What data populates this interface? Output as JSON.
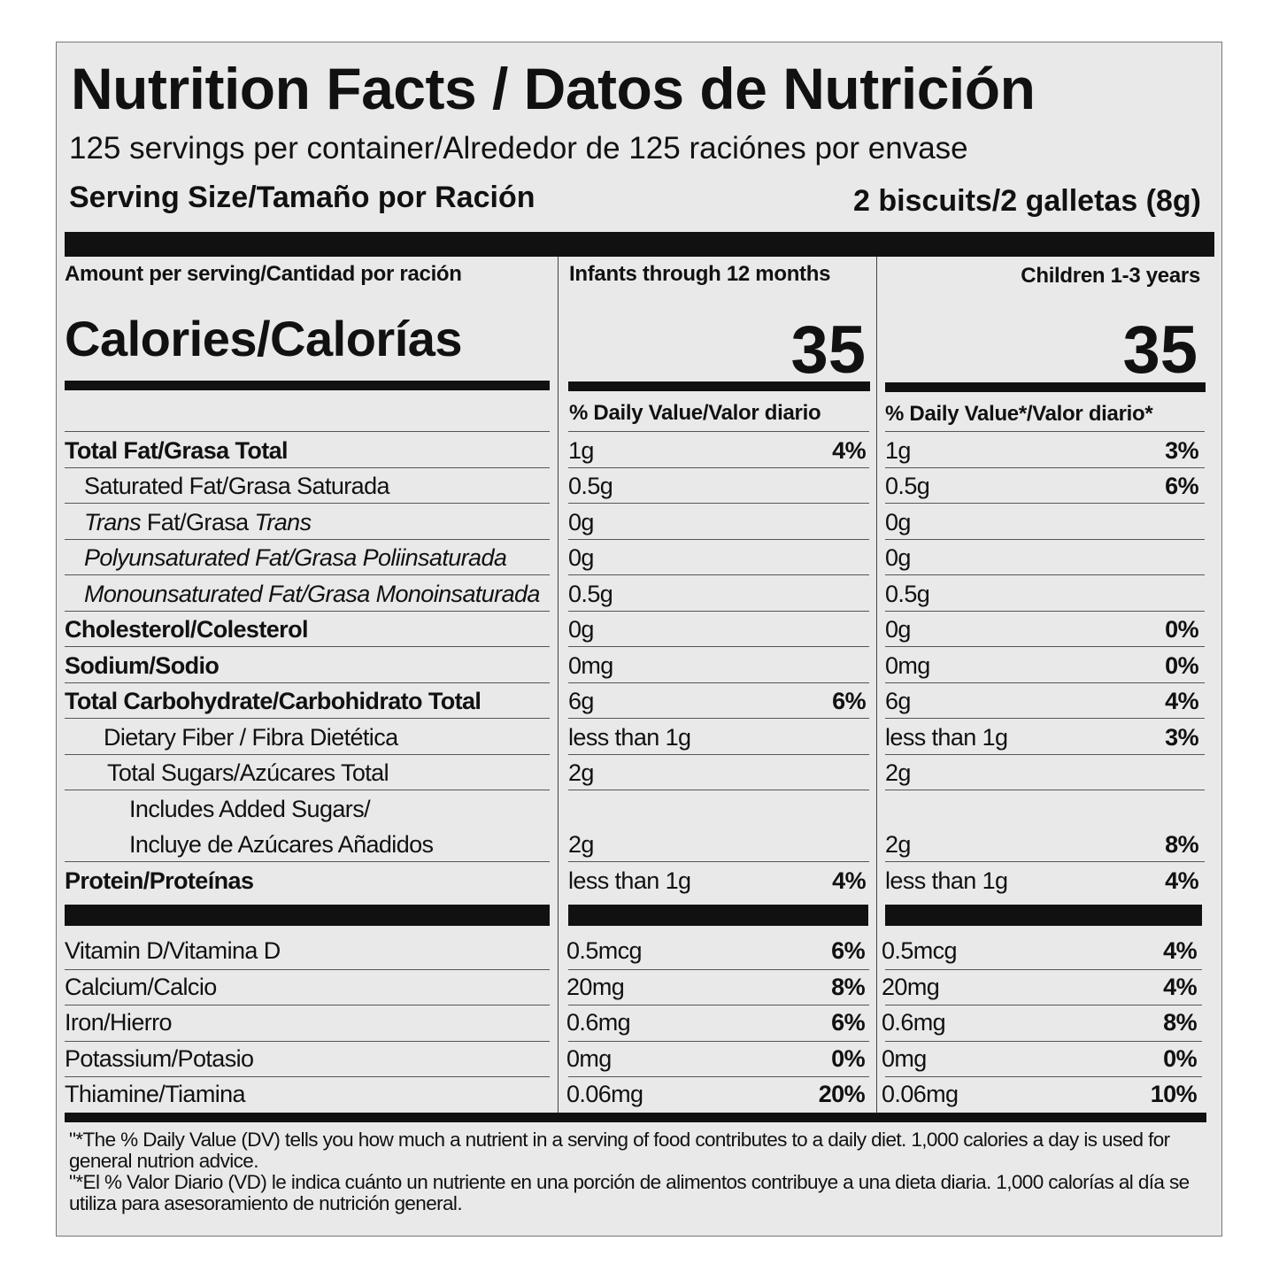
{
  "title": "Nutrition Facts / Datos de Nutrición",
  "servings": "125 servings per container/Alrededor de 125 raciónes por envase",
  "serving_size_label": "Serving Size/Tamaño por Ración",
  "serving_size_value": "2 biscuits/2 galletas (8g)",
  "amount_header": "Amount per serving/Cantidad por ración",
  "infant_header": "Infants through 12 months",
  "child_header": "Children 1-3 years",
  "calories_label": "Calories/Calorías",
  "infant_calories": "35",
  "child_calories": "35",
  "infant_dv_header": "% Daily Value/Valor diario",
  "child_dv_header": "% Daily Value*/Valor diario*",
  "rows": [
    {
      "parts": [
        {
          "t": "Total Fat/Grasa Total"
        }
      ],
      "style": "bold",
      "indent": 0,
      "iv": "1g",
      "ip": "4%",
      "cv": "1g",
      "cp": "3%"
    },
    {
      "parts": [
        {
          "t": "Saturated Fat/Grasa Saturada"
        }
      ],
      "style": "",
      "indent": 22,
      "iv": "0.5g",
      "ip": "",
      "cv": "0.5g",
      "cp": "6%"
    },
    {
      "parts": [
        {
          "t": "Trans",
          "i": true
        },
        {
          "t": " Fat/Grasa "
        },
        {
          "t": "Trans",
          "i": true
        }
      ],
      "style": "",
      "indent": 22,
      "iv": "0g",
      "ip": "",
      "cv": "0g",
      "cp": ""
    },
    {
      "parts": [
        {
          "t": "Polyunsaturated Fat/Grasa Poliinsaturada",
          "i": true
        }
      ],
      "style": "",
      "indent": 22,
      "iv": "0g",
      "ip": "",
      "cv": "0g",
      "cp": ""
    },
    {
      "parts": [
        {
          "t": "Monounsaturated Fat/Grasa Monoinsaturada",
          "i": true
        }
      ],
      "style": "",
      "indent": 22,
      "iv": "0.5g",
      "ip": "",
      "cv": "0.5g",
      "cp": ""
    },
    {
      "parts": [
        {
          "t": "Cholesterol/Colesterol"
        }
      ],
      "style": "bold",
      "indent": 0,
      "iv": "0g",
      "ip": "",
      "cv": "0g",
      "cp": "0%"
    },
    {
      "parts": [
        {
          "t": "Sodium/Sodio"
        }
      ],
      "style": "bold",
      "indent": 0,
      "iv": "0mg",
      "ip": "",
      "cv": "0mg",
      "cp": "0%"
    },
    {
      "parts": [
        {
          "t": "Total Carbohydrate/Carbohidrato Total"
        }
      ],
      "style": "bold",
      "indent": 0,
      "iv": "6g",
      "ip": "6%",
      "cv": "6g",
      "cp": "4%"
    },
    {
      "parts": [
        {
          "t": "Dietary Fiber / Fibra Dietética"
        }
      ],
      "style": "",
      "indent": 44,
      "iv": "less than 1g",
      "ip": "",
      "cv": "less than 1g",
      "cp": "3%"
    },
    {
      "parts": [
        {
          "t": "Total Sugars/Azúcares Total"
        }
      ],
      "style": "",
      "indent": 48,
      "iv": "2g",
      "ip": "",
      "cv": "2g",
      "cp": ""
    },
    {
      "parts": [
        {
          "t": "Includes Added Sugars/"
        },
        {
          "t": "Incluye de Azúcares Añadidos",
          "br": true
        }
      ],
      "style": "",
      "indent": 73,
      "iv": "2g",
      "ip": "",
      "cv": "2g",
      "cp": "8%",
      "double": true
    },
    {
      "parts": [
        {
          "t": "Protein/Proteínas"
        }
      ],
      "style": "bold",
      "indent": 0,
      "iv": "less than 1g",
      "ip": "4%",
      "cv": "less than 1g",
      "cp": "4%"
    }
  ],
  "vitamins": [
    {
      "label": "Vitamin D/Vitamina D",
      "iv": "0.5mcg",
      "ip": "6%",
      "cv": "0.5mcg",
      "cp": "4%"
    },
    {
      "label": "Calcium/Calcio",
      "iv": "20mg",
      "ip": "8%",
      "cv": "20mg",
      "cp": "4%"
    },
    {
      "label": "Iron/Hierro",
      "iv": "0.6mg",
      "ip": "6%",
      "cv": "0.6mg",
      "cp": "8%"
    },
    {
      "label": "Potassium/Potasio",
      "iv": "0mg",
      "ip": "0%",
      "cv": "0mg",
      "cp": "0%"
    },
    {
      "label": "Thiamine/Tiamina",
      "iv": "0.06mg",
      "ip": "20%",
      "cv": "0.06mg",
      "cp": "10%"
    }
  ],
  "footnote_en": "\"*The % Daily Value (DV) tells you how much a nutrient in a serving of food contributes to a daily diet. 1,000 calories a day is used for general nutrion advice.",
  "footnote_es": "\"*El % Valor Diario (VD) le indica cuánto un nutriente en una porción de alimentos contribuye a una dieta diaria. 1,000 calorías al día se utiliza para asesoramiento de nutrición general."
}
